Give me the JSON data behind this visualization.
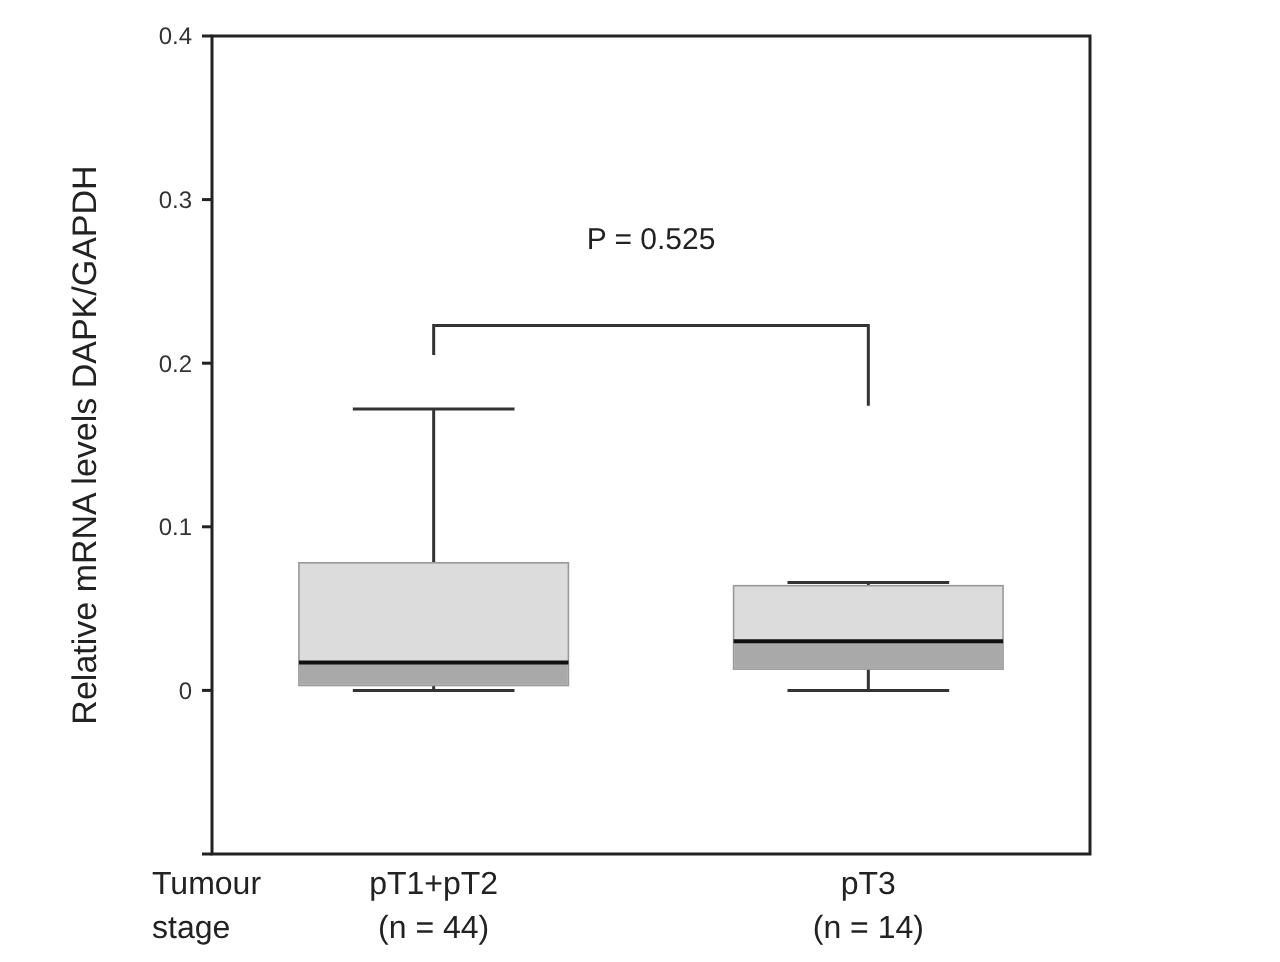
{
  "chart_data": {
    "type": "box",
    "ylabel": "Relative mRNA levels DAPK/GAPDH",
    "xlabel": "Tumour\nstage",
    "categories": [
      "pT1+pT2\n(n = 44)",
      "pT3\n(n = 14)"
    ],
    "boxes": [
      {
        "low": 0,
        "q1": 0.003,
        "median": 0.017,
        "q3": 0.078,
        "high": 0.172
      },
      {
        "low": 0,
        "q1": 0.013,
        "median": 0.03,
        "q3": 0.064,
        "high": 0.066
      }
    ],
    "colors": [
      "#dcdcdc",
      "#dcdcdc"
    ],
    "ylim": [
      -0.1,
      0.4
    ],
    "yticks": [
      {
        "value": -0.1,
        "label": null
      },
      0,
      0.1,
      0.2,
      0.3,
      0.4
    ],
    "annotations": [
      "P = 0.525"
    ],
    "grid": false
  }
}
